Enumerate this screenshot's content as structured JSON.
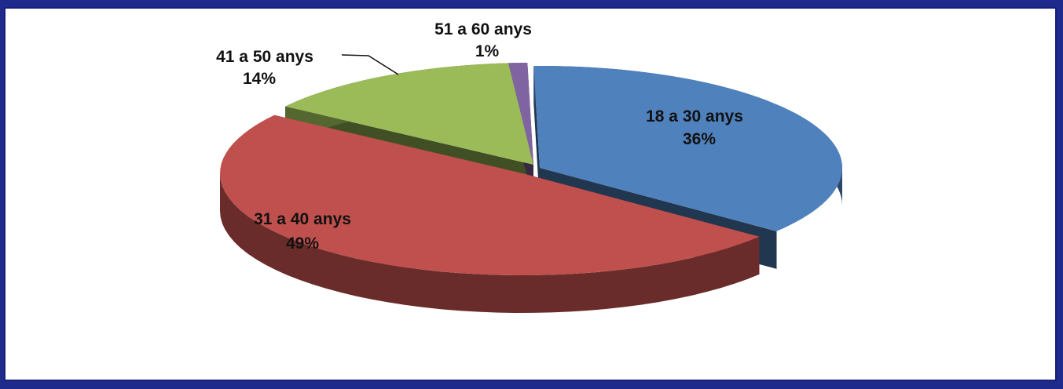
{
  "chart_data": {
    "type": "pie",
    "title": "",
    "three_d": true,
    "slices": [
      {
        "label": "18 a 30 anys",
        "value": 36,
        "value_label": "36%",
        "color": "#4f81bd"
      },
      {
        "label": "31 a 40 anys",
        "value": 49,
        "value_label": "49%",
        "color": "#c0504d"
      },
      {
        "label": "41 a 50 anys",
        "value": 14,
        "value_label": "14%",
        "color": "#9bbb59"
      },
      {
        "label": "51 a 60 anys",
        "value": 1,
        "value_label": "1%",
        "color": "#8064a2"
      }
    ],
    "legend": "none"
  }
}
